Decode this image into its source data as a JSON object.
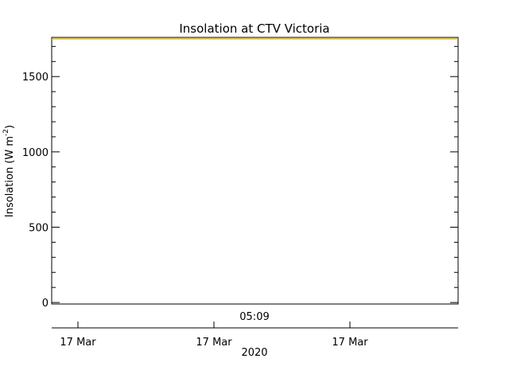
{
  "chart_data": {
    "type": "line",
    "title": "Insolation at CTV Victoria",
    "ylabel": "Insolation (W m",
    "ylabel_sup": "-2",
    "ylabel_close": ")",
    "ylim": [
      -10,
      1760
    ],
    "yticks": [
      0,
      500,
      1000,
      1500
    ],
    "ytick_labels": [
      "0",
      "500",
      "1000",
      "1500"
    ],
    "x_time_label": "05:09",
    "x_date_ticks": [
      "17 Mar",
      "17 Mar",
      "17 Mar"
    ],
    "x_year_label": "2020",
    "series": [
      {
        "values": [
          1750,
          1750
        ],
        "color": "#d4b000"
      }
    ],
    "grid": false,
    "colors": {
      "axes": "#000000",
      "series": "#d4b000"
    }
  }
}
